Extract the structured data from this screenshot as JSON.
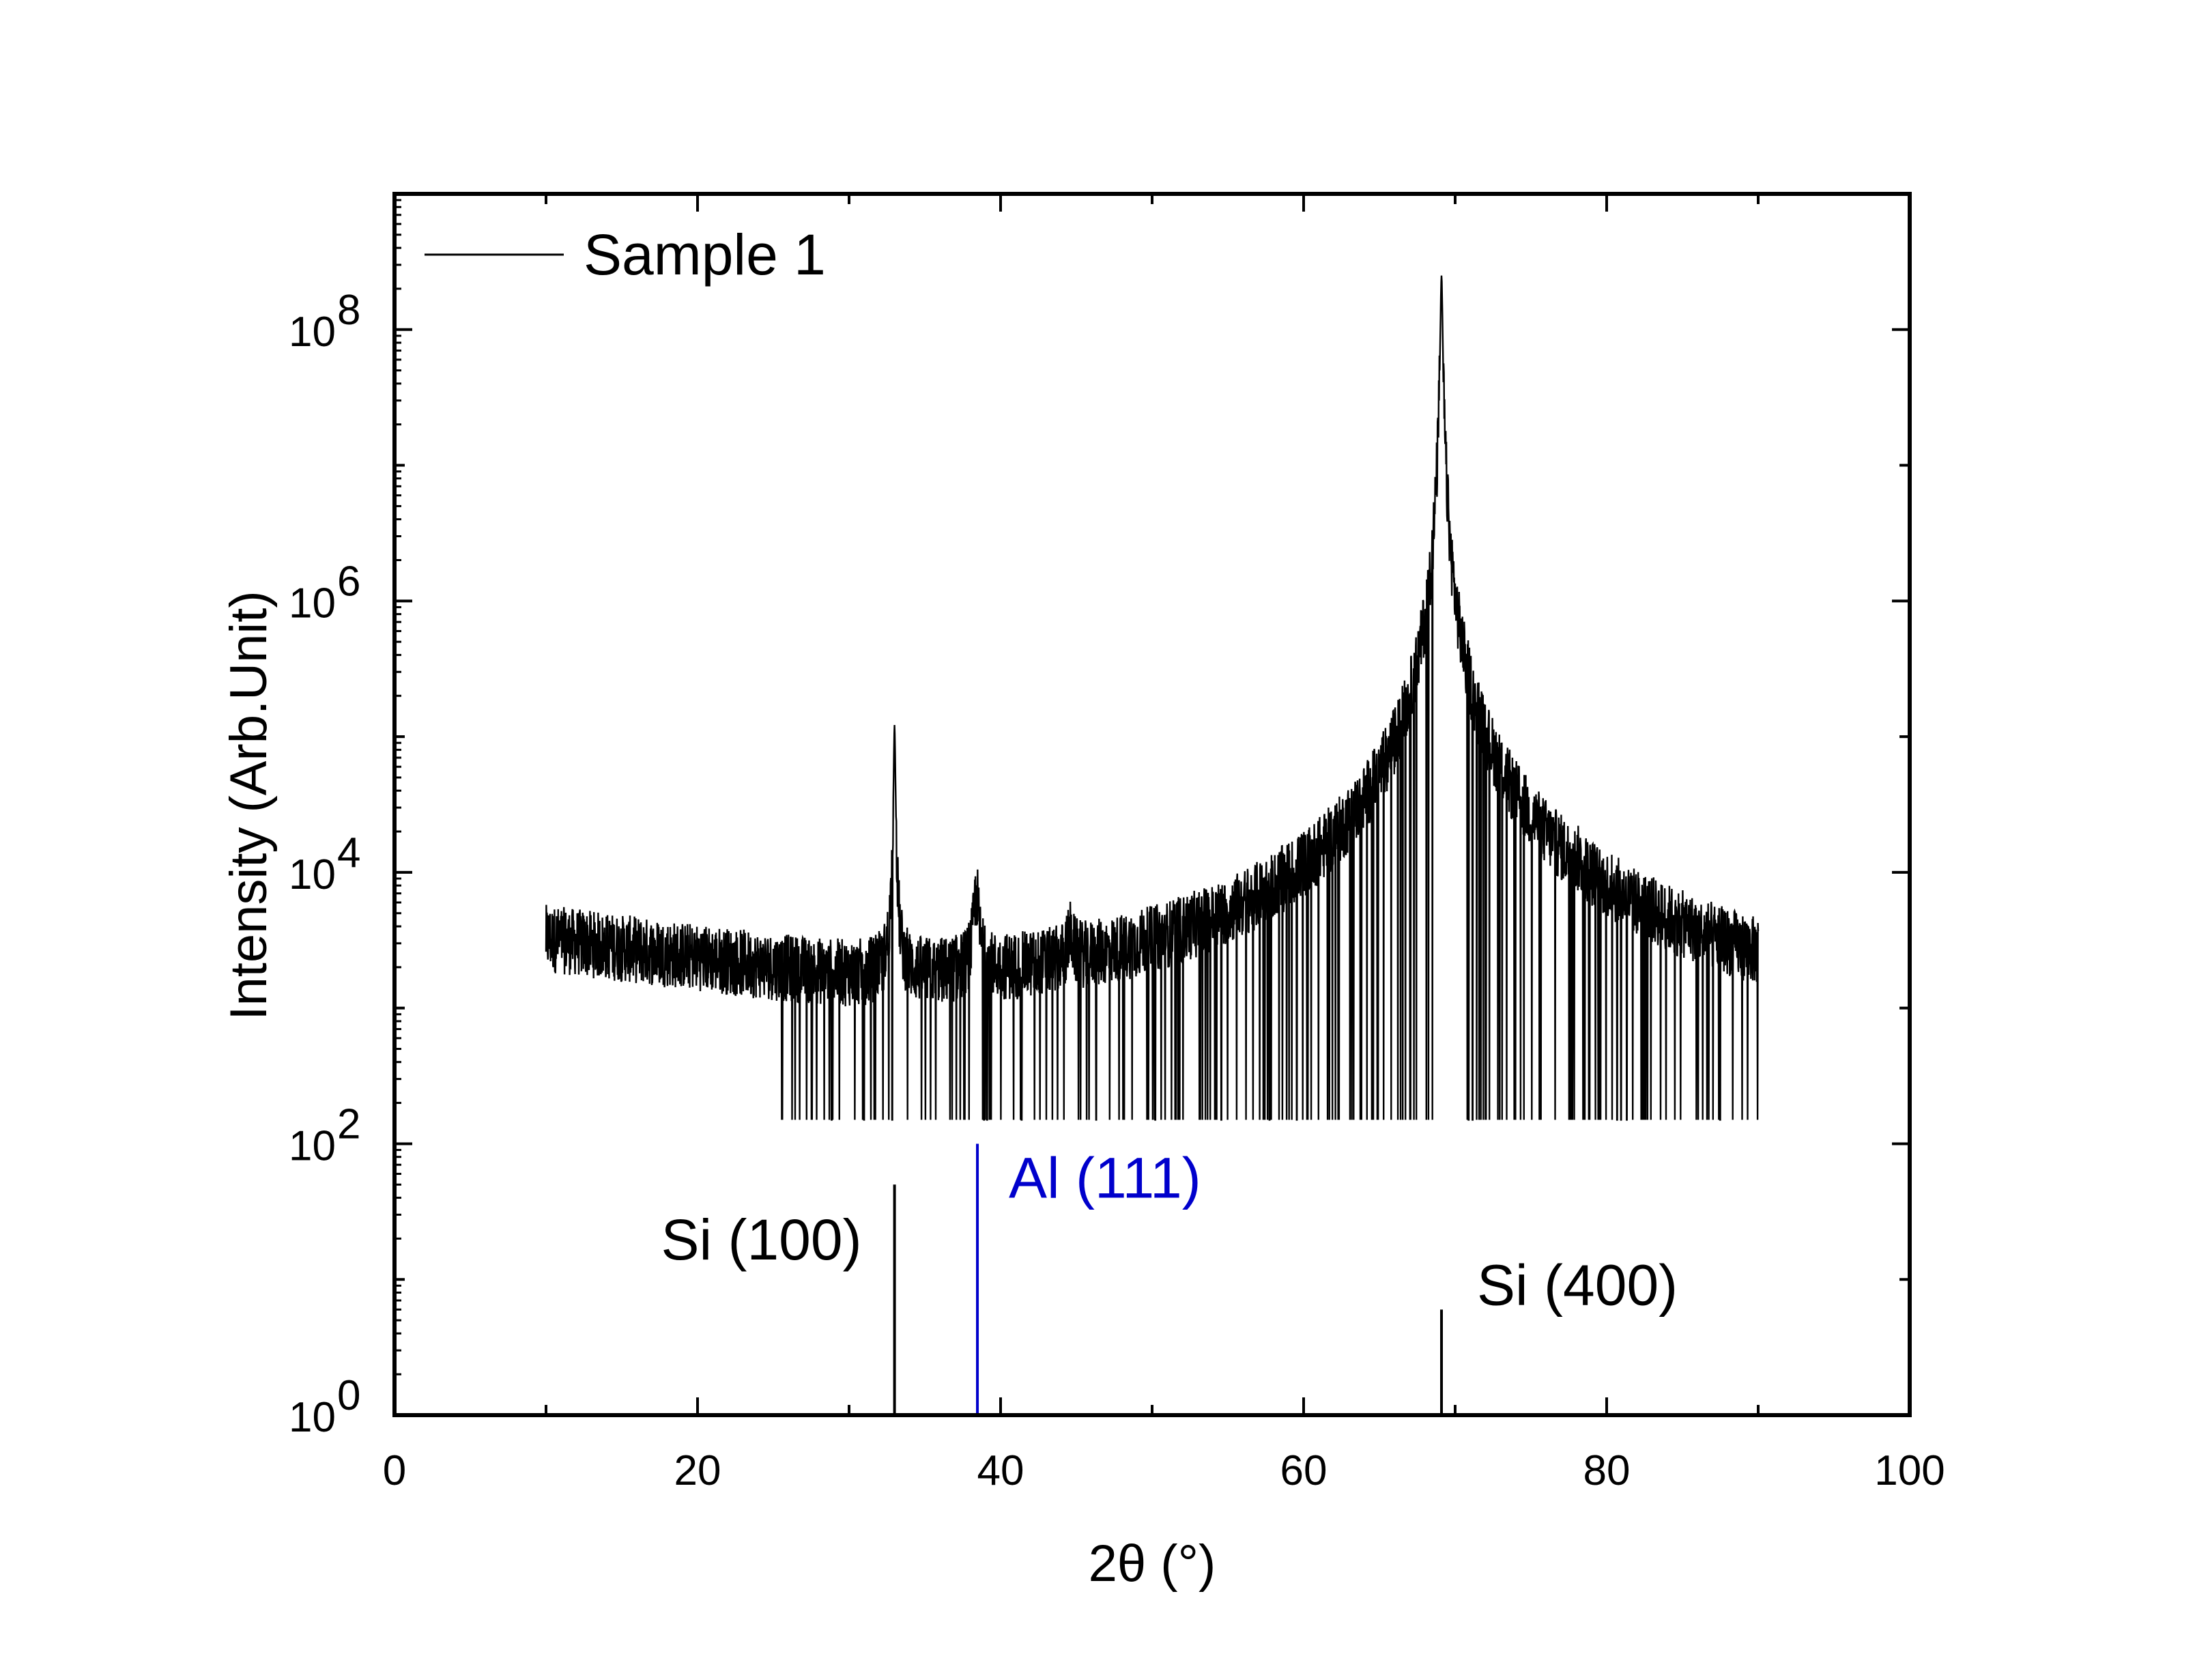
{
  "chart_data": {
    "type": "line",
    "xlabel": "2θ (°)",
    "ylabel": "Intensity (Arb.Unit)",
    "xlim": [
      0,
      100
    ],
    "ylim": [
      1,
      1000000000
    ],
    "yscale": "log",
    "x_ticks": [
      "0",
      "20",
      "40",
      "60",
      "80",
      "100"
    ],
    "y_ticks": [
      {
        "base": "10",
        "exp": "0"
      },
      {
        "base": "10",
        "exp": "2"
      },
      {
        "base": "10",
        "exp": "4"
      },
      {
        "base": "10",
        "exp": "6"
      },
      {
        "base": "10",
        "exp": "8"
      }
    ],
    "legend": {
      "placement": "top-left",
      "label": "Sample 1"
    },
    "series": [
      {
        "name": "Sample 1",
        "color": "#000000",
        "x_range": [
          10,
          90
        ],
        "noise_floor": 150,
        "baseline_points": [
          [
            10,
            3000
          ],
          [
            20,
            2000
          ],
          [
            30,
            1200
          ],
          [
            40,
            900
          ],
          [
            50,
            750
          ],
          [
            60,
            700
          ],
          [
            65,
            900
          ],
          [
            70,
            1200
          ],
          [
            80,
            650
          ],
          [
            90,
            550
          ]
        ],
        "peaks": [
          {
            "x": 33.0,
            "intensity": 120000,
            "width": 0.05
          },
          {
            "x": 38.4,
            "intensity": 5000,
            "width": 0.18
          },
          {
            "x": 44.6,
            "intensity": 1200,
            "width": 0.2
          },
          {
            "x": 69.1,
            "intensity": 250000000,
            "width": 0.06
          },
          {
            "x": 78.2,
            "intensity": 900,
            "width": 0.2
          }
        ]
      }
    ],
    "reference_lines": [
      {
        "label": "Si (100)",
        "x": 33.0,
        "top": 50,
        "color": "#000000"
      },
      {
        "label": "Al (111)",
        "x": 38.47,
        "top": 100,
        "color": "#0000cc"
      },
      {
        "label": "Si (400)",
        "x": 69.1,
        "top": 6,
        "color": "#000000"
      }
    ]
  }
}
